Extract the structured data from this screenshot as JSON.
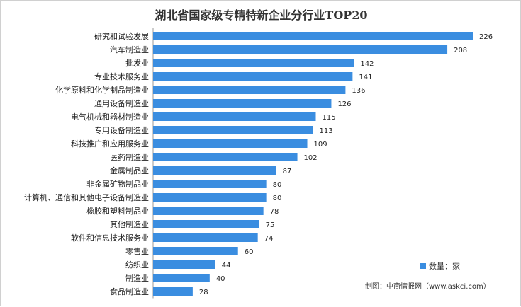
{
  "colors": {
    "bar": "#3a8de0"
  },
  "chart_data": {
    "type": "bar",
    "orientation": "horizontal",
    "title": "湖北省国家级专精特新企业分行业TOP20",
    "categories": [
      "研究和试验发展",
      "汽车制造业",
      "批发业",
      "专业技术服务业",
      "化学原料和化学制品制造业",
      "通用设备制造业",
      "电气机械和器材制造业",
      "专用设备制造业",
      "科技推广和应用服务业",
      "医药制造业",
      "金属制品业",
      "非金属矿物制品业",
      "计算机、通信和其他电子设备制造业",
      "橡胶和塑料制品业",
      "其他制造业",
      "软件和信息技术服务业",
      "零售业",
      "纺织业",
      "制造业",
      "食品制造业"
    ],
    "series": [
      {
        "name": "数量：家",
        "values": [
          226,
          208,
          142,
          141,
          136,
          126,
          115,
          113,
          109,
          102,
          87,
          80,
          80,
          78,
          75,
          74,
          60,
          44,
          40,
          28
        ]
      }
    ],
    "grid": false,
    "legend_position": "bottom-right"
  },
  "source": "制图：中商情报网（www.askci.com）"
}
